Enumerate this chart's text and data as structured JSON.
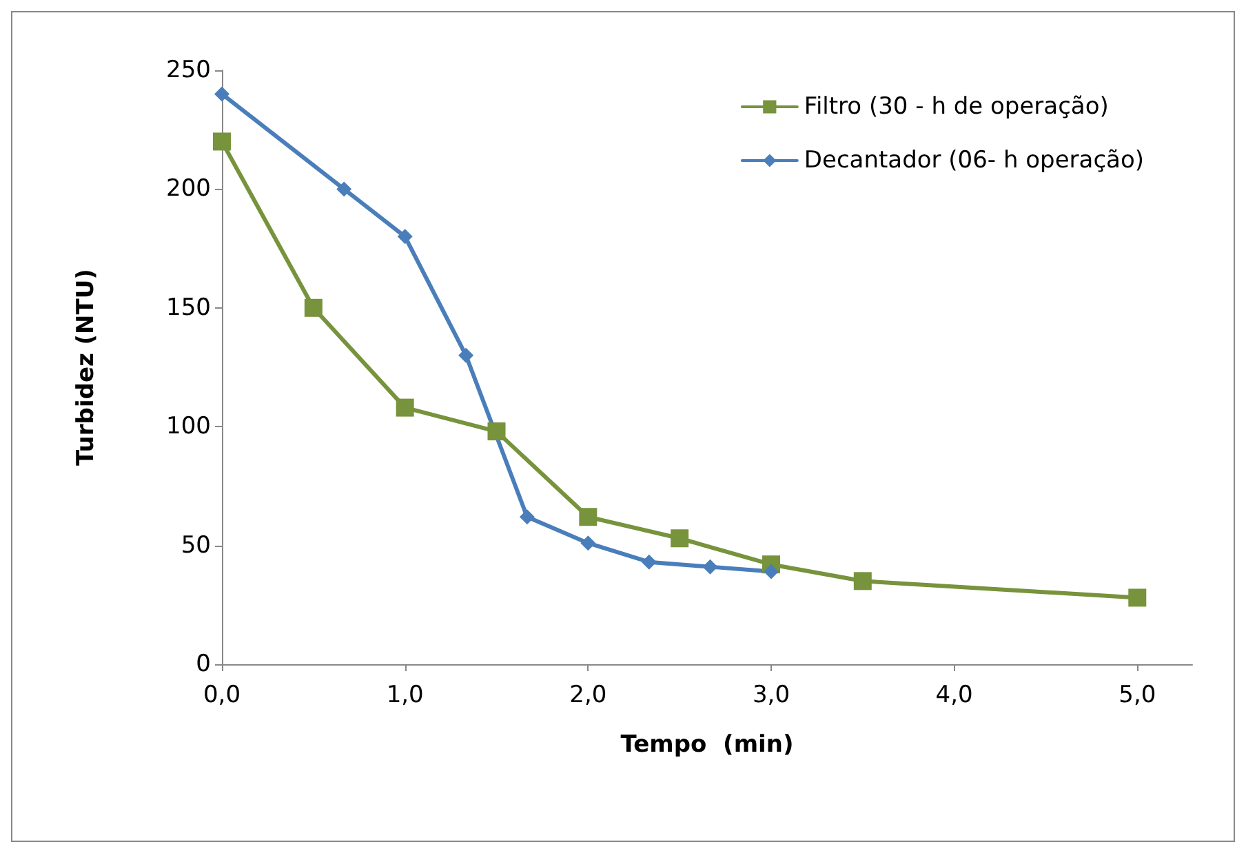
{
  "chart_data": {
    "type": "line",
    "xlabel": "Tempo  (min)",
    "ylabel": "Turbidez (NTU)",
    "xlim": [
      0,
      5.3
    ],
    "xticks": [
      {
        "value": 0,
        "label": "0,0"
      },
      {
        "value": 1,
        "label": "1,0"
      },
      {
        "value": 2,
        "label": "2,0"
      },
      {
        "value": 3,
        "label": "3,0"
      },
      {
        "value": 4,
        "label": "4,0"
      },
      {
        "value": 5,
        "label": "5,0"
      }
    ],
    "ylim": [
      0,
      250
    ],
    "yticks": [
      0,
      50,
      100,
      150,
      200,
      250
    ],
    "grid": false,
    "legend": "top right",
    "series": [
      {
        "name": "Filtro (30 - h de operação)",
        "color": "#77933c",
        "marker": "square",
        "x": [
          0,
          0.5,
          1,
          1.5,
          2,
          2.5,
          3,
          3.5,
          5
        ],
        "values": [
          220,
          150,
          108,
          98,
          62,
          53,
          42,
          35,
          28
        ]
      },
      {
        "name": "Decantador (06- h operação)",
        "color": "#4a7ebb",
        "marker": "diamond",
        "x": [
          0,
          0.667,
          1,
          1.333,
          1.667,
          2,
          2.333,
          2.667,
          3
        ],
        "values": [
          240,
          200,
          180,
          130,
          62,
          51,
          43,
          41,
          39
        ]
      }
    ]
  }
}
